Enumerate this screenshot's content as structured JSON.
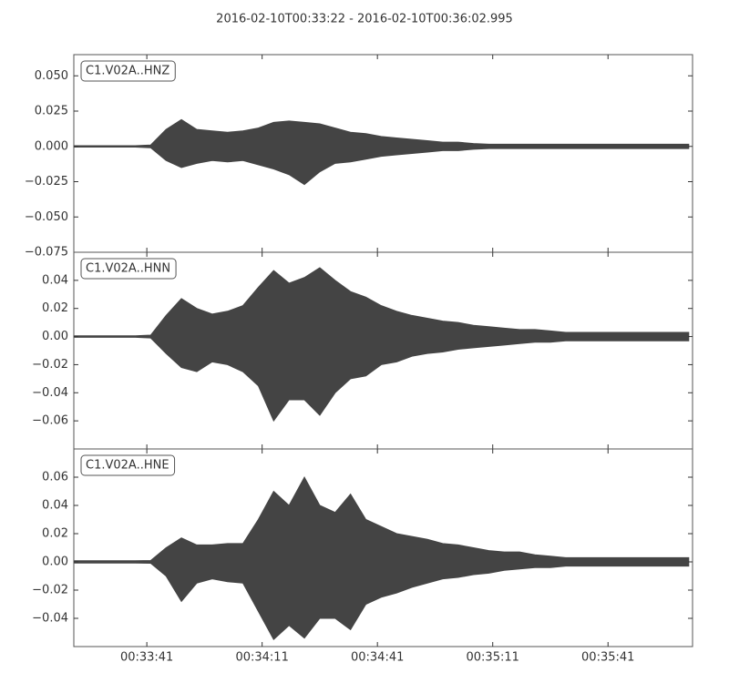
{
  "title": "2016-02-10T00:33:22  -  2016-02-10T00:36:02.995",
  "chart_data": [
    {
      "type": "area",
      "label": "C1.V02A..HNZ",
      "color": "#444444",
      "x": [
        0,
        4,
        8,
        12,
        16,
        20,
        24,
        28,
        32,
        36,
        40,
        44,
        48,
        52,
        56,
        60,
        64,
        68,
        72,
        76,
        80,
        84,
        88,
        92,
        96,
        100,
        104,
        108,
        112,
        116,
        120,
        124,
        128,
        132,
        136,
        140,
        144,
        148,
        152,
        156,
        160
      ],
      "high": [
        0.0005,
        0.0005,
        0.0005,
        0.0005,
        0.0005,
        0.001,
        0.012,
        0.019,
        0.012,
        0.011,
        0.01,
        0.011,
        0.013,
        0.017,
        0.018,
        0.017,
        0.016,
        0.013,
        0.01,
        0.009,
        0.007,
        0.006,
        0.005,
        0.004,
        0.003,
        0.003,
        0.002,
        0.0015,
        0.0015,
        0.0015,
        0.0015,
        0.0015,
        0.0015,
        0.0015,
        0.0015,
        0.0015,
        0.0015,
        0.0015,
        0.0015,
        0.0015,
        0.0015
      ],
      "low": [
        -0.0005,
        -0.0005,
        -0.0005,
        -0.0005,
        -0.0005,
        -0.001,
        -0.01,
        -0.015,
        -0.012,
        -0.01,
        -0.011,
        -0.01,
        -0.013,
        -0.016,
        -0.02,
        -0.027,
        -0.018,
        -0.012,
        -0.011,
        -0.009,
        -0.007,
        -0.006,
        -0.005,
        -0.004,
        -0.003,
        -0.003,
        -0.002,
        -0.0015,
        -0.0015,
        -0.0015,
        -0.0015,
        -0.0015,
        -0.0015,
        -0.0015,
        -0.0015,
        -0.0015,
        -0.0015,
        -0.0015,
        -0.0015,
        -0.0015,
        -0.0015
      ],
      "ylim": [
        -0.075,
        0.065
      ],
      "yticks": [
        {
          "value": 0.05,
          "label": "0.050"
        },
        {
          "value": 0.025,
          "label": "0.025"
        },
        {
          "value": 0,
          "label": "0.000"
        },
        {
          "value": -0.025,
          "label": "−0.025"
        },
        {
          "value": -0.05,
          "label": "−0.050"
        },
        {
          "value": -0.075,
          "label": "−0.075"
        }
      ]
    },
    {
      "type": "area",
      "label": "C1.V02A..HNN",
      "color": "#444444",
      "x": [
        0,
        4,
        8,
        12,
        16,
        20,
        24,
        28,
        32,
        36,
        40,
        44,
        48,
        52,
        56,
        60,
        64,
        68,
        72,
        76,
        80,
        84,
        88,
        92,
        96,
        100,
        104,
        108,
        112,
        116,
        120,
        124,
        128,
        132,
        136,
        140,
        144,
        148,
        152,
        156,
        160
      ],
      "high": [
        0.0005,
        0.0005,
        0.0005,
        0.0005,
        0.0005,
        0.001,
        0.015,
        0.027,
        0.02,
        0.016,
        0.018,
        0.022,
        0.035,
        0.047,
        0.038,
        0.042,
        0.049,
        0.04,
        0.032,
        0.028,
        0.022,
        0.018,
        0.015,
        0.013,
        0.011,
        0.01,
        0.008,
        0.007,
        0.006,
        0.005,
        0.005,
        0.004,
        0.003,
        0.003,
        0.003,
        0.003,
        0.003,
        0.003,
        0.003,
        0.003,
        0.003
      ],
      "low": [
        -0.0005,
        -0.0005,
        -0.0005,
        -0.0005,
        -0.0005,
        -0.001,
        -0.012,
        -0.022,
        -0.025,
        -0.018,
        -0.02,
        -0.025,
        -0.035,
        -0.06,
        -0.045,
        -0.045,
        -0.056,
        -0.04,
        -0.03,
        -0.028,
        -0.02,
        -0.018,
        -0.014,
        -0.012,
        -0.011,
        -0.009,
        -0.008,
        -0.007,
        -0.006,
        -0.005,
        -0.004,
        -0.004,
        -0.003,
        -0.003,
        -0.003,
        -0.003,
        -0.003,
        -0.003,
        -0.003,
        -0.003,
        -0.003
      ],
      "ylim": [
        -0.08,
        0.06
      ],
      "yticks": [
        0.04,
        0.02,
        {
          "value": 0,
          "label": "0.00"
        },
        {
          "value": -0.02,
          "label": "−0.02"
        },
        {
          "value": -0.04,
          "label": "−0.04"
        },
        {
          "value": -0.06,
          "label": "−0.06"
        }
      ]
    },
    {
      "type": "area",
      "label": "C1.V02A..HNE",
      "color": "#444444",
      "x": [
        0,
        4,
        8,
        12,
        16,
        20,
        24,
        28,
        32,
        36,
        40,
        44,
        48,
        52,
        56,
        60,
        64,
        68,
        72,
        76,
        80,
        84,
        88,
        92,
        96,
        100,
        104,
        108,
        112,
        116,
        120,
        124,
        128,
        132,
        136,
        140,
        144,
        148,
        152,
        156,
        160
      ],
      "high": [
        0.0008,
        0.0008,
        0.0008,
        0.0008,
        0.0008,
        0.001,
        0.01,
        0.017,
        0.012,
        0.012,
        0.013,
        0.013,
        0.03,
        0.05,
        0.04,
        0.06,
        0.04,
        0.035,
        0.048,
        0.03,
        0.025,
        0.02,
        0.018,
        0.016,
        0.013,
        0.012,
        0.01,
        0.008,
        0.007,
        0.007,
        0.005,
        0.004,
        0.003,
        0.003,
        0.003,
        0.003,
        0.003,
        0.003,
        0.003,
        0.003,
        0.003
      ],
      "low": [
        -0.0008,
        -0.0008,
        -0.0008,
        -0.0008,
        -0.0008,
        -0.001,
        -0.01,
        -0.028,
        -0.015,
        -0.012,
        -0.014,
        -0.015,
        -0.035,
        -0.055,
        -0.045,
        -0.054,
        -0.04,
        -0.04,
        -0.048,
        -0.03,
        -0.025,
        -0.022,
        -0.018,
        -0.015,
        -0.012,
        -0.011,
        -0.009,
        -0.008,
        -0.006,
        -0.005,
        -0.004,
        -0.004,
        -0.003,
        -0.003,
        -0.003,
        -0.003,
        -0.003,
        -0.003,
        -0.003,
        -0.003,
        -0.003
      ],
      "ylim": [
        -0.06,
        0.08
      ],
      "yticks": [
        0.06,
        0.04,
        0.02,
        {
          "value": 0,
          "label": "0.00"
        },
        {
          "value": -0.02,
          "label": "−0.02"
        },
        {
          "value": -0.04,
          "label": "−0.04"
        }
      ],
      "xlim": [
        0,
        160.995
      ],
      "xticks": [
        {
          "value": 19,
          "label": "00:33:41"
        },
        {
          "value": 49,
          "label": "00:34:11"
        },
        {
          "value": 79,
          "label": "00:34:41"
        },
        {
          "value": 109,
          "label": "00:35:11"
        },
        {
          "value": 139,
          "label": "00:35:41"
        }
      ]
    }
  ]
}
